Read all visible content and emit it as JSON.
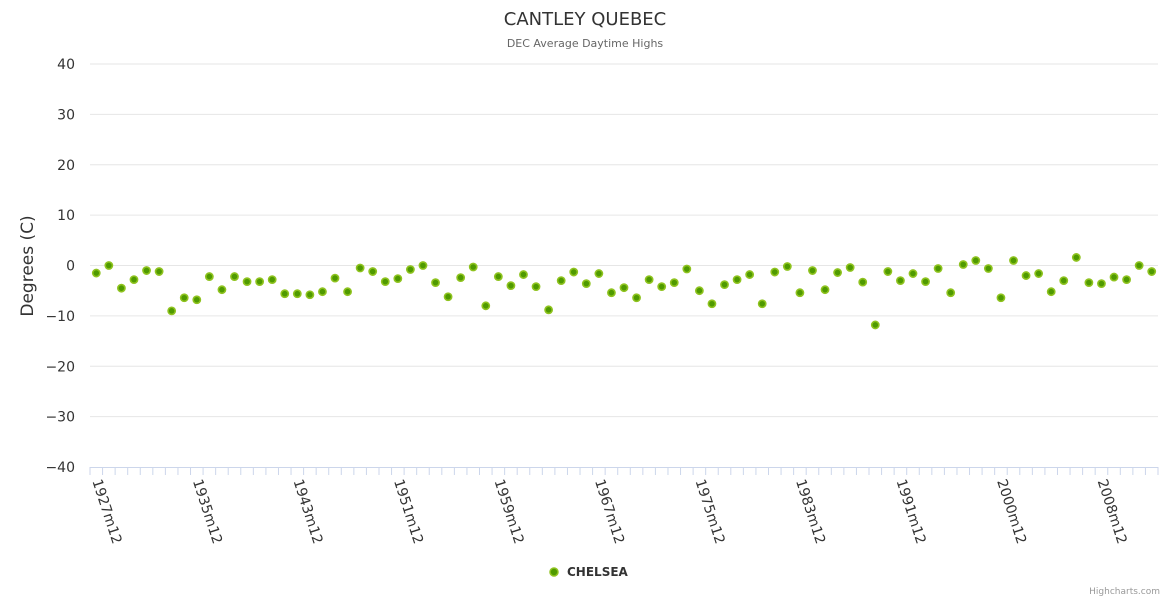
{
  "chart_data": {
    "type": "scatter",
    "title": "CANTLEY QUEBEC",
    "subtitle": "DEC Average Daytime Highs",
    "ylabel": "Degrees (C)",
    "xlabel": "",
    "ylim": [
      -40,
      40
    ],
    "yticks": [
      40,
      30,
      20,
      10,
      0,
      -10,
      -20,
      -30,
      -40
    ],
    "grid": true,
    "legend_position": "bottom-center",
    "xtick_labels": [
      {
        "index": 0,
        "label": "1927m12"
      },
      {
        "index": 8,
        "label": "1935m12"
      },
      {
        "index": 16,
        "label": "1943m12"
      },
      {
        "index": 24,
        "label": "1951m12"
      },
      {
        "index": 32,
        "label": "1959m12"
      },
      {
        "index": 40,
        "label": "1967m12"
      },
      {
        "index": 48,
        "label": "1975m12"
      },
      {
        "index": 56,
        "label": "1983m12"
      },
      {
        "index": 64,
        "label": "1991m12"
      },
      {
        "index": 72,
        "label": "2000m12"
      },
      {
        "index": 80,
        "label": "2008m12"
      }
    ],
    "series": [
      {
        "name": "CHELSEA",
        "color": "#7cb500",
        "values": [
          -1.5,
          0,
          -4.5,
          -2.8,
          -1,
          -1.2,
          -9,
          -6.4,
          -6.8,
          -2.2,
          -4.8,
          -2.2,
          -3.2,
          -3.2,
          -2.8,
          -5.6,
          -5.6,
          -5.8,
          -5.2,
          -2.5,
          -5.2,
          -0.5,
          -1.2,
          -3.2,
          -2.6,
          -0.8,
          0,
          -3.4,
          -6.2,
          -2.4,
          -0.3,
          -8,
          -2.2,
          -4,
          -1.8,
          -4.2,
          -8.8,
          -3,
          -1.3,
          -3.6,
          -1.6,
          -5.4,
          -4.4,
          -6.4,
          -2.8,
          -4.2,
          -3.4,
          -0.7,
          -5,
          -7.6,
          -3.8,
          -2.8,
          -1.8,
          -7.6,
          -1.3,
          -0.2,
          -5.4,
          -1,
          -4.8,
          -1.4,
          -0.4,
          -3.3,
          -11.8,
          -1.2,
          -3,
          -1.6,
          -3.2,
          -0.6,
          -5.4,
          0.2,
          1,
          -0.6,
          -6.4,
          1,
          -2,
          -1.6,
          -5.2,
          -3,
          1.6,
          -3.4,
          -3.6,
          -2.3,
          -2.8,
          0,
          -1.2
        ]
      }
    ]
  },
  "credits": "Highcharts.com"
}
